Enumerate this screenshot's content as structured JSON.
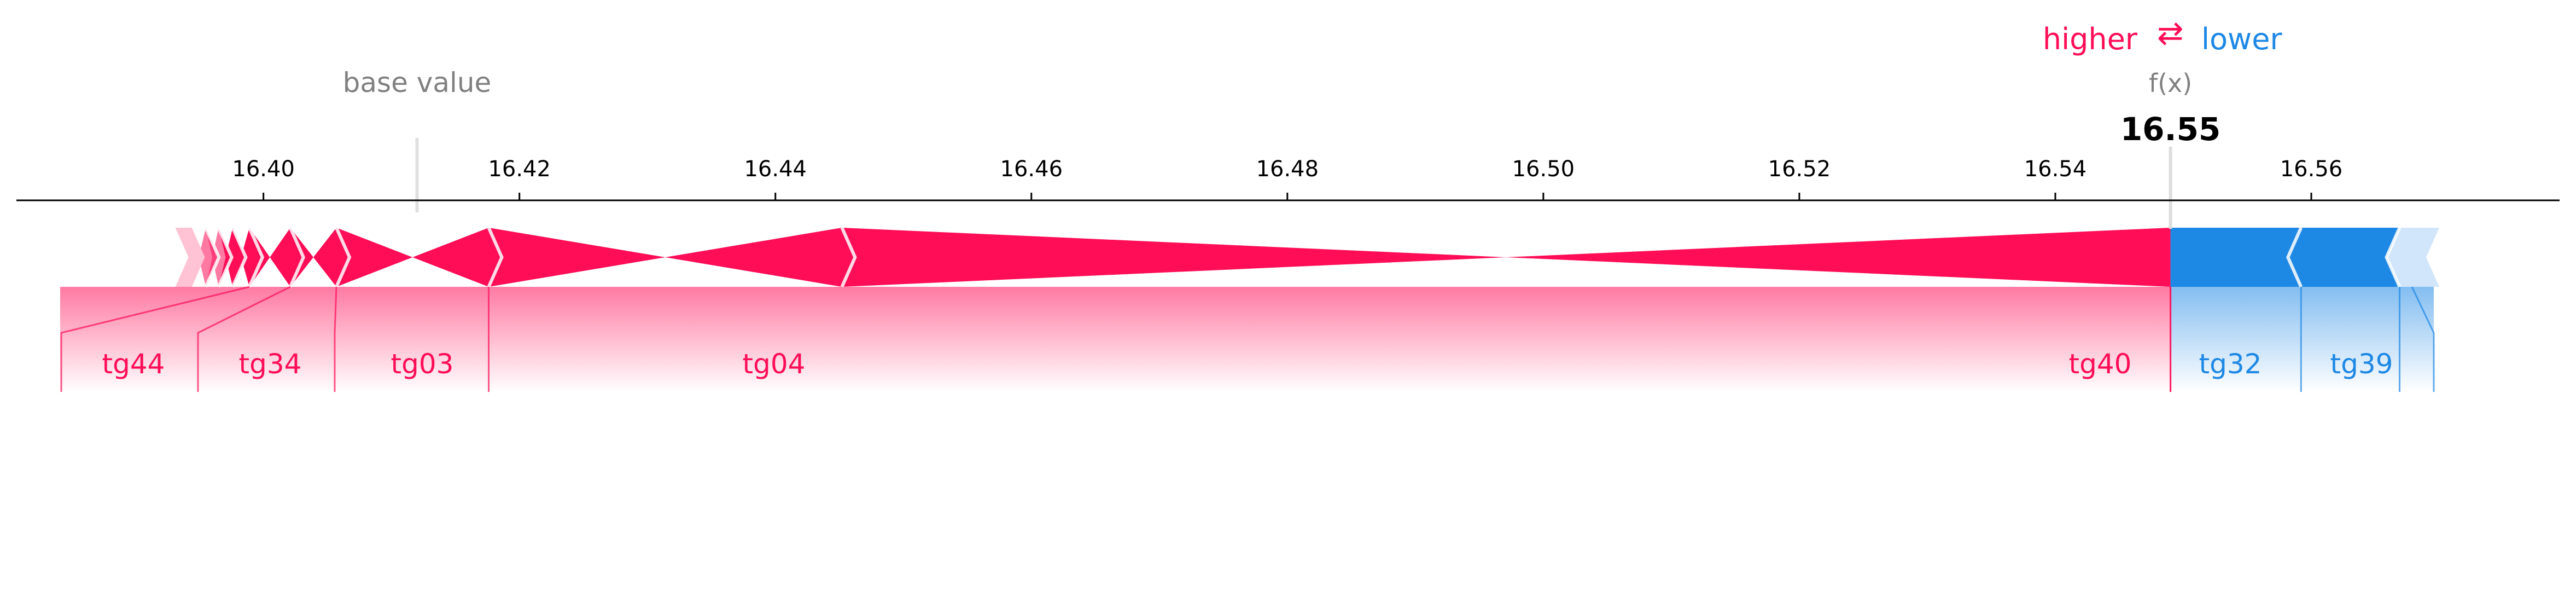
{
  "chart_data": {
    "type": "force",
    "legend": {
      "higher_label": "higher",
      "arrow_glyph": "⇄",
      "lower_label": "lower"
    },
    "base_value_label": "base value",
    "base_value": 16.412,
    "output_label": "f(x)",
    "output_value": 16.549,
    "output_value_text": "16.55",
    "axis": {
      "ticks": [
        16.4,
        16.42,
        16.44,
        16.46,
        16.48,
        16.5,
        16.52,
        16.54,
        16.56
      ],
      "tick_labels": [
        "16.40",
        "16.42",
        "16.44",
        "16.46",
        "16.48",
        "16.50",
        "16.52",
        "16.54",
        "16.56"
      ],
      "xlim": [
        16.3807,
        16.5794
      ]
    },
    "positive_features": [
      {
        "name": "tg40",
        "value": 0.1038
      },
      {
        "name": "tg04",
        "value": 0.0276
      },
      {
        "name": "tg03",
        "value": 0.0119
      },
      {
        "name": "tg34",
        "value": 0.0036
      },
      {
        "name": "tg44",
        "value": 0.0032
      },
      {
        "name": "",
        "value": 0.0013
      },
      {
        "name": "",
        "value": 0.0011
      },
      {
        "name": "",
        "value": 0.001
      },
      {
        "name": "",
        "value": 0.0011
      }
    ],
    "negative_features": [
      {
        "name": "tg32",
        "value": -0.0102
      },
      {
        "name": "tg39",
        "value": -0.0077
      },
      {
        "name": "",
        "value": -0.0031
      }
    ],
    "colors": {
      "positive": "#ff0d57",
      "negative": "#1e88e5",
      "positive_light": "#ffc3d5",
      "negative_light": "#d1e6fa",
      "muted_text": "#808080",
      "axis": "#000000"
    }
  }
}
